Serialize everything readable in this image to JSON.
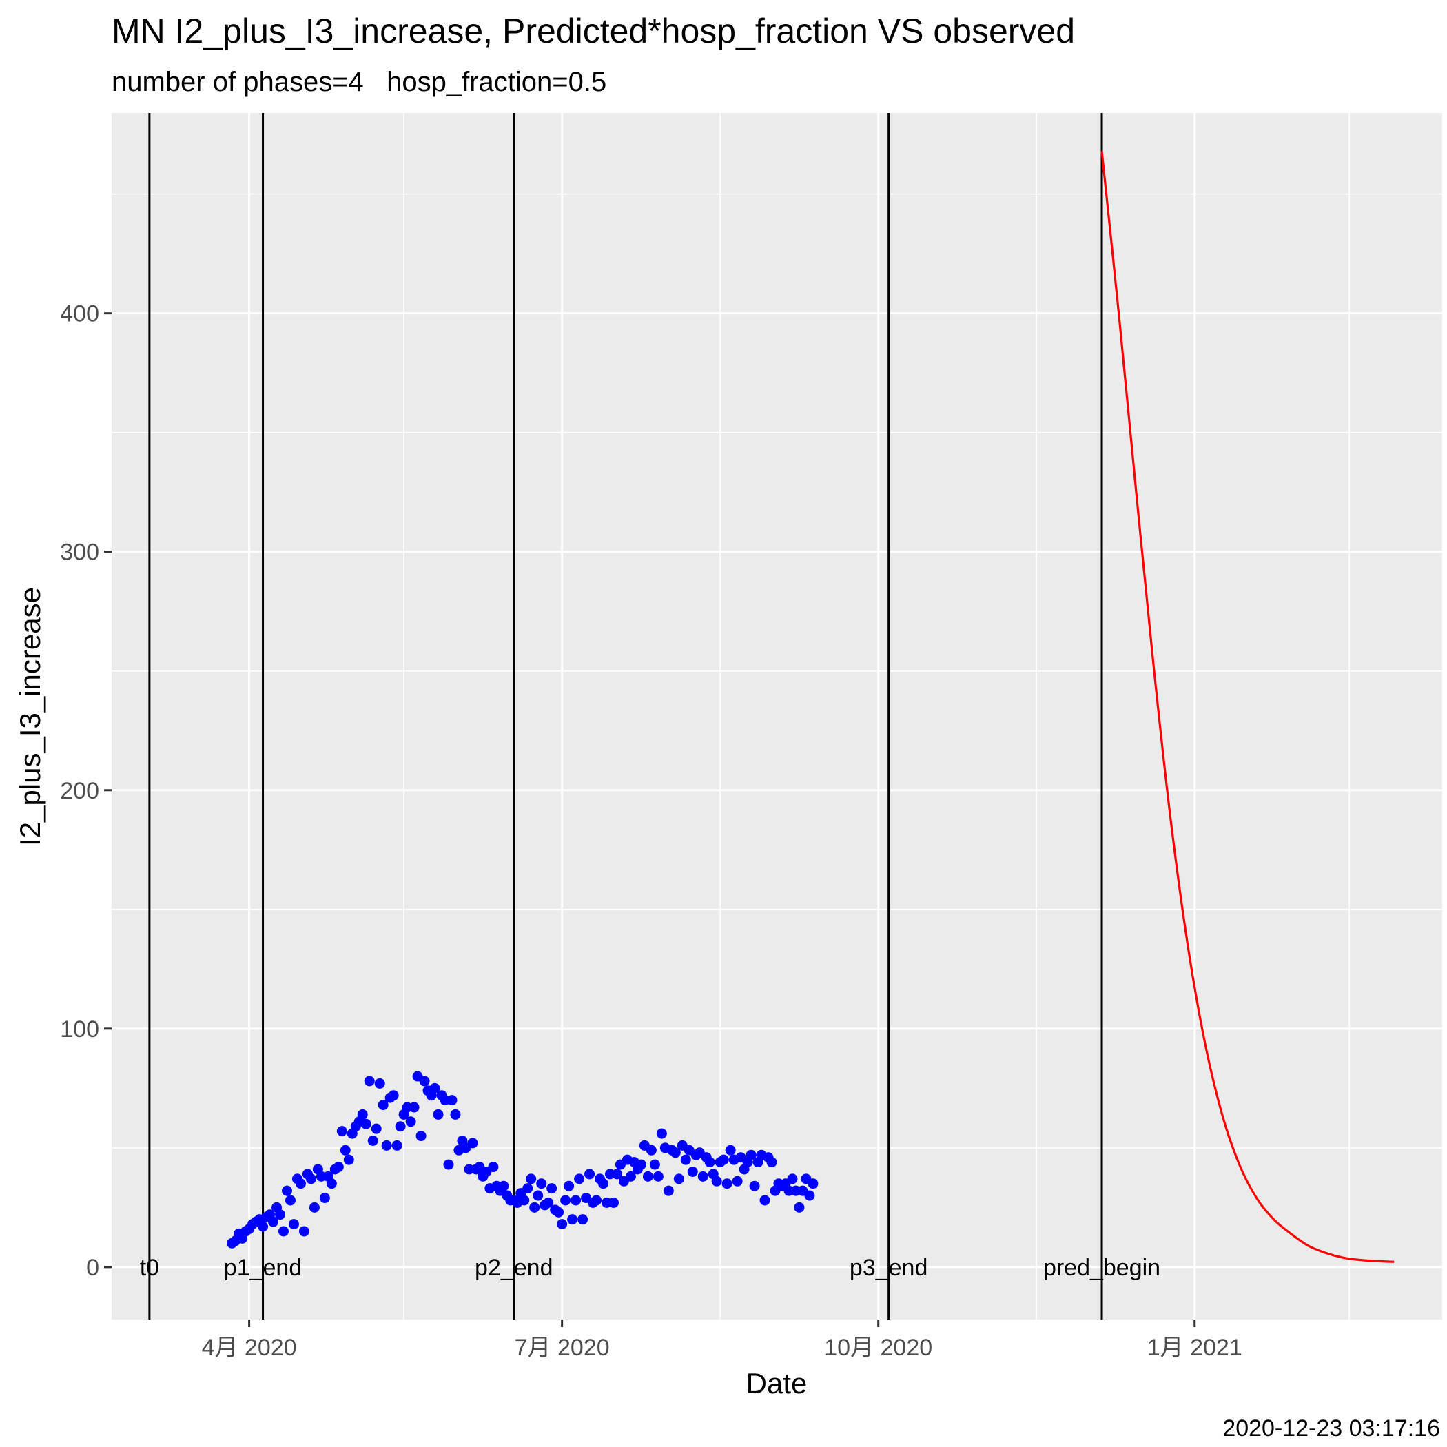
{
  "chart_data": {
    "type": "scatter",
    "title": "MN I2_plus_I3_increase, Predicted*hosp_fraction VS observed",
    "subtitle": "number of phases=4   hosp_fraction=0.5",
    "xlabel": "Date",
    "ylabel": "I2_plus_I3_increase",
    "caption": "2020-12-23 03:17:16",
    "xlim": [
      "2020-02-21",
      "2021-03-14"
    ],
    "ylim": [
      -22,
      484
    ],
    "grid": true,
    "x_ticks": [
      {
        "date": "2020-04-01",
        "label": "4月 2020"
      },
      {
        "date": "2020-07-01",
        "label": "7月 2020"
      },
      {
        "date": "2020-10-01",
        "label": "10月 2020"
      },
      {
        "date": "2021-01-01",
        "label": "1月 2021"
      }
    ],
    "x_minor_ticks": [
      "2020-02-15",
      "2020-05-16",
      "2020-08-16",
      "2020-11-16",
      "2021-02-15"
    ],
    "y_ticks": [
      0,
      100,
      200,
      300,
      400
    ],
    "y_minor_ticks": [
      50,
      150,
      250,
      350,
      450
    ],
    "phase_lines": [
      {
        "date": "2020-03-03",
        "label": "t0"
      },
      {
        "date": "2020-04-05",
        "label": "p1_end"
      },
      {
        "date": "2020-06-17",
        "label": "p2_end"
      },
      {
        "date": "2020-10-04",
        "label": "p3_end"
      },
      {
        "date": "2020-12-05",
        "label": "pred_begin"
      }
    ],
    "series": [
      {
        "role": "observed",
        "color": "#0000ff",
        "points": [
          [
            "2020-03-27",
            10
          ],
          [
            "2020-03-28",
            11
          ],
          [
            "2020-03-29",
            14
          ],
          [
            "2020-03-30",
            12
          ],
          [
            "2020-03-31",
            15
          ],
          [
            "2020-04-01",
            16
          ],
          [
            "2020-04-02",
            18
          ],
          [
            "2020-04-03",
            19
          ],
          [
            "2020-04-04",
            20
          ],
          [
            "2020-04-05",
            17
          ],
          [
            "2020-04-06",
            21
          ],
          [
            "2020-04-07",
            22
          ],
          [
            "2020-04-08",
            19
          ],
          [
            "2020-04-09",
            25
          ],
          [
            "2020-04-10",
            22
          ],
          [
            "2020-04-11",
            15
          ],
          [
            "2020-04-12",
            32
          ],
          [
            "2020-04-13",
            28
          ],
          [
            "2020-04-14",
            18
          ],
          [
            "2020-04-15",
            37
          ],
          [
            "2020-04-16",
            35
          ],
          [
            "2020-04-17",
            15
          ],
          [
            "2020-04-18",
            39
          ],
          [
            "2020-04-19",
            37
          ],
          [
            "2020-04-20",
            25
          ],
          [
            "2020-04-21",
            41
          ],
          [
            "2020-04-22",
            38
          ],
          [
            "2020-04-23",
            29
          ],
          [
            "2020-04-24",
            38
          ],
          [
            "2020-04-25",
            35
          ],
          [
            "2020-04-26",
            41
          ],
          [
            "2020-04-27",
            42
          ],
          [
            "2020-04-28",
            57
          ],
          [
            "2020-04-29",
            49
          ],
          [
            "2020-04-30",
            45
          ],
          [
            "2020-05-01",
            56
          ],
          [
            "2020-05-02",
            59
          ],
          [
            "2020-05-03",
            61
          ],
          [
            "2020-05-04",
            64
          ],
          [
            "2020-05-05",
            60
          ],
          [
            "2020-05-06",
            78
          ],
          [
            "2020-05-07",
            53
          ],
          [
            "2020-05-08",
            58
          ],
          [
            "2020-05-09",
            77
          ],
          [
            "2020-05-10",
            68
          ],
          [
            "2020-05-11",
            51
          ],
          [
            "2020-05-12",
            71
          ],
          [
            "2020-05-13",
            72
          ],
          [
            "2020-05-14",
            51
          ],
          [
            "2020-05-15",
            59
          ],
          [
            "2020-05-16",
            64
          ],
          [
            "2020-05-17",
            67
          ],
          [
            "2020-05-18",
            61
          ],
          [
            "2020-05-19",
            67
          ],
          [
            "2020-05-20",
            80
          ],
          [
            "2020-05-21",
            55
          ],
          [
            "2020-05-22",
            78
          ],
          [
            "2020-05-23",
            74
          ],
          [
            "2020-05-24",
            72
          ],
          [
            "2020-05-25",
            75
          ],
          [
            "2020-05-26",
            64
          ],
          [
            "2020-05-27",
            72
          ],
          [
            "2020-05-28",
            70
          ],
          [
            "2020-05-29",
            43
          ],
          [
            "2020-05-30",
            70
          ],
          [
            "2020-05-31",
            64
          ],
          [
            "2020-06-01",
            49
          ],
          [
            "2020-06-02",
            53
          ],
          [
            "2020-06-03",
            50
          ],
          [
            "2020-06-04",
            41
          ],
          [
            "2020-06-05",
            52
          ],
          [
            "2020-06-06",
            41
          ],
          [
            "2020-06-07",
            42
          ],
          [
            "2020-06-08",
            38
          ],
          [
            "2020-06-09",
            40
          ],
          [
            "2020-06-10",
            33
          ],
          [
            "2020-06-11",
            42
          ],
          [
            "2020-06-12",
            34
          ],
          [
            "2020-06-13",
            32
          ],
          [
            "2020-06-14",
            34
          ],
          [
            "2020-06-15",
            30
          ],
          [
            "2020-06-16",
            28
          ],
          [
            "2020-06-17",
            28
          ],
          [
            "2020-06-18",
            27
          ],
          [
            "2020-06-19",
            31
          ],
          [
            "2020-06-20",
            28
          ],
          [
            "2020-06-21",
            33
          ],
          [
            "2020-06-22",
            37
          ],
          [
            "2020-06-23",
            25
          ],
          [
            "2020-06-24",
            30
          ],
          [
            "2020-06-25",
            35
          ],
          [
            "2020-06-26",
            26
          ],
          [
            "2020-06-27",
            27
          ],
          [
            "2020-06-28",
            33
          ],
          [
            "2020-06-29",
            24
          ],
          [
            "2020-06-30",
            23
          ],
          [
            "2020-07-01",
            18
          ],
          [
            "2020-07-02",
            28
          ],
          [
            "2020-07-03",
            34
          ],
          [
            "2020-07-04",
            20
          ],
          [
            "2020-07-05",
            28
          ],
          [
            "2020-07-06",
            37
          ],
          [
            "2020-07-07",
            20
          ],
          [
            "2020-07-08",
            29
          ],
          [
            "2020-07-09",
            39
          ],
          [
            "2020-07-10",
            27
          ],
          [
            "2020-07-11",
            28
          ],
          [
            "2020-07-12",
            37
          ],
          [
            "2020-07-13",
            35
          ],
          [
            "2020-07-14",
            27
          ],
          [
            "2020-07-15",
            39
          ],
          [
            "2020-07-16",
            27
          ],
          [
            "2020-07-17",
            39
          ],
          [
            "2020-07-18",
            43
          ],
          [
            "2020-07-19",
            36
          ],
          [
            "2020-07-20",
            45
          ],
          [
            "2020-07-21",
            38
          ],
          [
            "2020-07-22",
            44
          ],
          [
            "2020-07-23",
            41
          ],
          [
            "2020-07-24",
            43
          ],
          [
            "2020-07-25",
            51
          ],
          [
            "2020-07-26",
            38
          ],
          [
            "2020-07-27",
            49
          ],
          [
            "2020-07-28",
            43
          ],
          [
            "2020-07-29",
            38
          ],
          [
            "2020-07-30",
            56
          ],
          [
            "2020-07-31",
            50
          ],
          [
            "2020-08-01",
            32
          ],
          [
            "2020-08-02",
            49
          ],
          [
            "2020-08-03",
            48
          ],
          [
            "2020-08-04",
            37
          ],
          [
            "2020-08-05",
            51
          ],
          [
            "2020-08-06",
            45
          ],
          [
            "2020-08-07",
            49
          ],
          [
            "2020-08-08",
            40
          ],
          [
            "2020-08-09",
            47
          ],
          [
            "2020-08-10",
            48
          ],
          [
            "2020-08-11",
            38
          ],
          [
            "2020-08-12",
            46
          ],
          [
            "2020-08-13",
            44
          ],
          [
            "2020-08-14",
            39
          ],
          [
            "2020-08-15",
            36
          ],
          [
            "2020-08-16",
            44
          ],
          [
            "2020-08-17",
            45
          ],
          [
            "2020-08-18",
            35
          ],
          [
            "2020-08-19",
            49
          ],
          [
            "2020-08-20",
            45
          ],
          [
            "2020-08-21",
            36
          ],
          [
            "2020-08-22",
            46
          ],
          [
            "2020-08-23",
            41
          ],
          [
            "2020-08-24",
            44
          ],
          [
            "2020-08-25",
            47
          ],
          [
            "2020-08-26",
            34
          ],
          [
            "2020-08-27",
            44
          ],
          [
            "2020-08-28",
            47
          ],
          [
            "2020-08-29",
            28
          ],
          [
            "2020-08-30",
            46
          ],
          [
            "2020-08-31",
            44
          ],
          [
            "2020-09-01",
            32
          ],
          [
            "2020-09-02",
            35
          ],
          [
            "2020-09-03",
            34
          ],
          [
            "2020-09-04",
            35
          ],
          [
            "2020-09-05",
            32
          ],
          [
            "2020-09-06",
            37
          ],
          [
            "2020-09-07",
            32
          ],
          [
            "2020-09-08",
            25
          ],
          [
            "2020-09-09",
            32
          ],
          [
            "2020-09-10",
            37
          ],
          [
            "2020-09-11",
            30
          ],
          [
            "2020-09-12",
            35
          ]
        ]
      },
      {
        "role": "predicted",
        "color": "#ff0000",
        "points": [
          [
            "2020-12-05",
            468
          ],
          [
            "2020-12-10",
            399
          ],
          [
            "2020-12-15",
            325
          ],
          [
            "2020-12-20",
            253
          ],
          [
            "2020-12-25",
            188
          ],
          [
            "2020-12-30",
            135
          ],
          [
            "2021-01-04",
            94
          ],
          [
            "2021-01-09",
            64
          ],
          [
            "2021-01-14",
            43
          ],
          [
            "2021-01-19",
            29
          ],
          [
            "2021-01-24",
            20
          ],
          [
            "2021-01-29",
            14
          ],
          [
            "2021-02-03",
            9
          ],
          [
            "2021-02-08",
            6
          ],
          [
            "2021-02-13",
            4
          ],
          [
            "2021-02-18",
            3
          ],
          [
            "2021-02-23",
            2.5
          ],
          [
            "2021-02-28",
            2.2
          ]
        ]
      }
    ]
  }
}
